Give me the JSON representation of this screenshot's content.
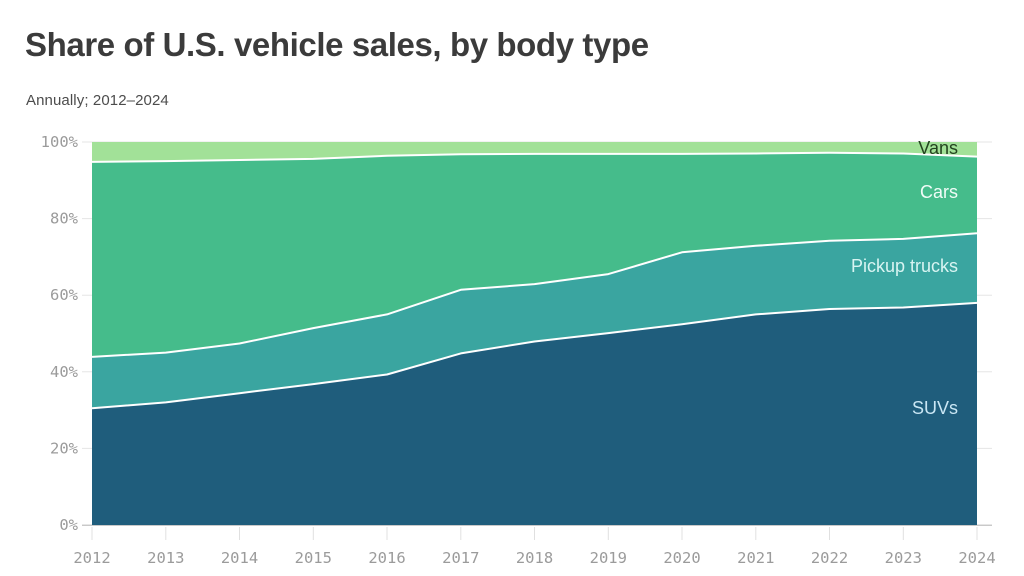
{
  "header": {
    "title": "Share of U.S. vehicle sales, by body type",
    "subtitle": "Annually; 2012–2024"
  },
  "chart_data": {
    "type": "area",
    "stacked": true,
    "stack_order": "bottom-to-top",
    "title": "Share of U.S. vehicle sales, by body type",
    "subtitle": "Annually; 2012–2024",
    "x": [
      2012,
      2013,
      2014,
      2015,
      2016,
      2017,
      2018,
      2019,
      2020,
      2021,
      2022,
      2023,
      2024
    ],
    "y_tick_labels": [
      "0%",
      "20%",
      "40%",
      "60%",
      "80%",
      "100%"
    ],
    "y_tick_values": [
      0,
      20,
      40,
      60,
      80,
      100
    ],
    "ylim": [
      0,
      100
    ],
    "unit": "percent share",
    "grid": "horizontal",
    "legend_position": "labels-on-areas-right",
    "separator_color": "#ffffff",
    "axis_label_color": "#9b9b9b",
    "series": [
      {
        "name": "SUVs",
        "color": "#1f5d7c",
        "label_color": "#c9e6f4",
        "values": [
          30.5,
          32.0,
          34.4,
          36.8,
          39.3,
          44.8,
          47.9,
          50.1,
          52.4,
          55.0,
          56.4,
          56.8,
          58.0
        ]
      },
      {
        "name": "Pickup trucks",
        "color": "#3aa5a0",
        "label_color": "#d8f4f2",
        "values": [
          13.4,
          13.0,
          13.0,
          14.6,
          15.7,
          16.6,
          15.0,
          15.4,
          18.8,
          17.9,
          17.8,
          17.9,
          18.2
        ]
      },
      {
        "name": "Cars",
        "color": "#45bc8b",
        "label_color": "#f0fcf7",
        "values": [
          50.9,
          50.0,
          47.9,
          44.2,
          41.4,
          35.4,
          34.0,
          31.4,
          25.7,
          24.1,
          23.0,
          22.3,
          20.0
        ]
      },
      {
        "name": "Vans",
        "color": "#a2e198",
        "label_color": "#23431f",
        "values": [
          5.2,
          5.0,
          4.7,
          4.4,
          3.6,
          3.2,
          3.1,
          3.1,
          3.1,
          3.0,
          2.8,
          3.0,
          3.8
        ]
      }
    ]
  }
}
